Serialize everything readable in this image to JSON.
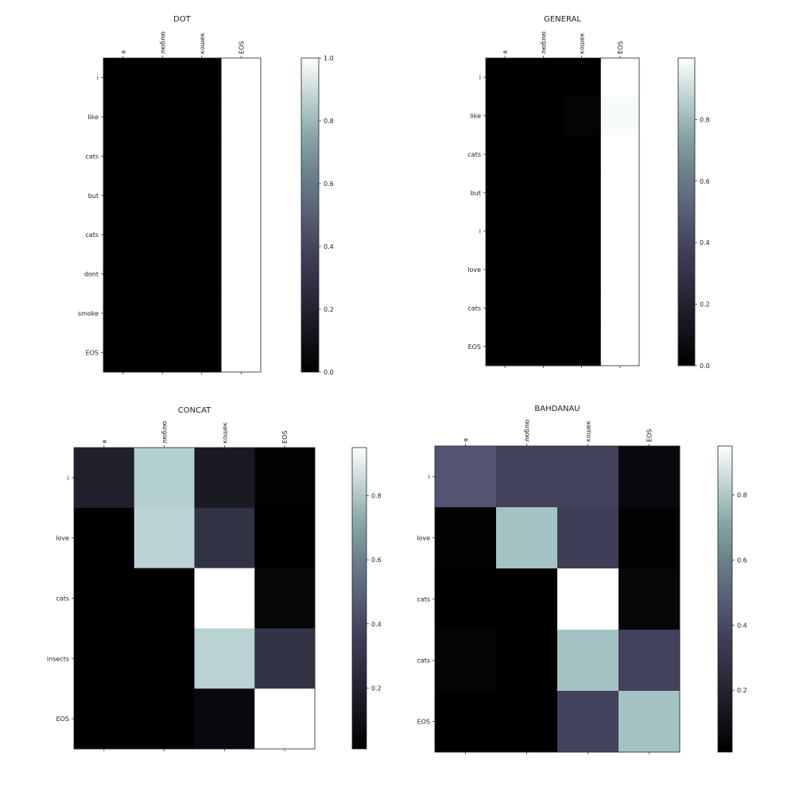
{
  "chart_data": [
    {
      "type": "heatmap",
      "title": "DOT",
      "x_labels": [
        "я",
        "люблю",
        "кошек",
        "EOS"
      ],
      "y_labels": [
        "i",
        "like",
        "cats",
        "but",
        "cats",
        "dont",
        "smoke",
        "EOS"
      ],
      "values": [
        [
          0,
          0,
          0,
          1
        ],
        [
          0,
          0,
          0,
          1
        ],
        [
          0,
          0,
          0,
          1
        ],
        [
          0,
          0,
          0,
          1
        ],
        [
          0,
          0,
          0,
          1
        ],
        [
          0,
          0,
          0,
          1
        ],
        [
          0,
          0,
          0,
          1
        ],
        [
          0,
          0,
          0,
          1
        ]
      ],
      "colorbar": {
        "min": 0,
        "max": 1,
        "ticks": [
          "0.0",
          "0.2",
          "0.4",
          "0.6",
          "0.8",
          "1.0"
        ]
      },
      "colormap": "bone"
    },
    {
      "type": "heatmap",
      "title": "GENERAL",
      "x_labels": [
        "я",
        "люблю",
        "кошек",
        "EOS"
      ],
      "y_labels": [
        "i",
        "like",
        "cats",
        "but",
        "i",
        "love",
        "cats",
        "EOS"
      ],
      "values": [
        [
          0,
          0,
          0,
          1
        ],
        [
          0,
          0,
          0.02,
          0.98
        ],
        [
          0,
          0,
          0,
          1
        ],
        [
          0,
          0,
          0,
          1
        ],
        [
          0,
          0,
          0,
          1
        ],
        [
          0,
          0,
          0,
          1
        ],
        [
          0,
          0,
          0,
          1
        ],
        [
          0,
          0,
          0,
          1
        ]
      ],
      "colorbar": {
        "min": 0,
        "max": 1,
        "ticks": [
          "0.0",
          "0.2",
          "0.4",
          "0.6",
          "0.8"
        ]
      },
      "colormap": "bone"
    },
    {
      "type": "heatmap",
      "title": "CONCAT",
      "x_labels": [
        "я",
        "люблю",
        "кошек",
        "EOS"
      ],
      "y_labels": [
        "i",
        "love",
        "cats",
        "insects",
        "EOS"
      ],
      "values": [
        [
          0.15,
          0.75,
          0.12,
          0.02
        ],
        [
          0.01,
          0.77,
          0.22,
          0.01
        ],
        [
          0.01,
          0.01,
          0.95,
          0.04
        ],
        [
          0.01,
          0.01,
          0.76,
          0.22
        ],
        [
          0.01,
          0.01,
          0.05,
          0.95
        ]
      ],
      "colorbar": {
        "min": 0.01,
        "max": 0.95,
        "ticks": [
          "0.2",
          "0.4",
          "0.6",
          "0.8"
        ]
      },
      "colormap": "bone"
    },
    {
      "type": "heatmap",
      "title": "BAHDANAU",
      "x_labels": [
        "я",
        "люблю",
        "кошек",
        "EOS"
      ],
      "y_labels": [
        "i",
        "love",
        "cats",
        "cats",
        "EOS"
      ],
      "values": [
        [
          0.36,
          0.29,
          0.29,
          0.05
        ],
        [
          0.02,
          0.7,
          0.27,
          0.02
        ],
        [
          0.01,
          0.01,
          0.95,
          0.04
        ],
        [
          0.03,
          0.01,
          0.7,
          0.29
        ],
        [
          0.01,
          0.01,
          0.29,
          0.7
        ]
      ],
      "colorbar": {
        "min": 0.01,
        "max": 0.95,
        "ticks": [
          "0.2",
          "0.4",
          "0.6",
          "0.8"
        ]
      },
      "colormap": "bone"
    }
  ]
}
